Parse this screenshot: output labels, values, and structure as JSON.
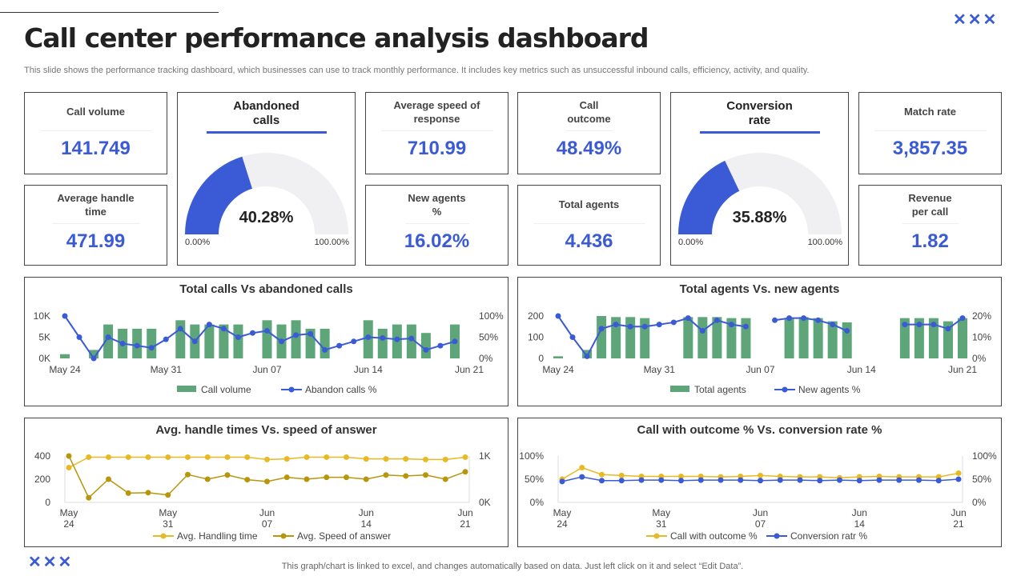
{
  "header": {
    "title": "Call center performance analysis dashboard",
    "subtitle": "This slide shows the performance tracking dashboard, which businesses can use to track monthly performance. It includes key metrics such as unsuccessful inbound calls, efficiency, activity,  and quality.",
    "decor": "✕✕✕"
  },
  "colors": {
    "accent": "#3b5bd6",
    "bar": "#5ea67a",
    "yellow": "#e8b923",
    "olive": "#b8960c"
  },
  "kpis": {
    "call_volume": {
      "label": "Call volume",
      "value": "141.749"
    },
    "avg_speed": {
      "label": "Average speed of response",
      "value": "710.99"
    },
    "call_outcome": {
      "label": "Call outcome",
      "value": "48.49%"
    },
    "match_rate": {
      "label": "Match rate",
      "value": "3,857.35"
    },
    "avg_handle": {
      "label": "Average handle time",
      "value": "471.99"
    },
    "new_agents": {
      "label": "New agents %",
      "value": "16.02%"
    },
    "total_agents": {
      "label": "Total agents",
      "value": "4.436"
    },
    "revenue": {
      "label": "Revenue per call",
      "value": "1.82"
    }
  },
  "gauges": {
    "abandoned": {
      "label": "Abandoned calls",
      "value": "40.28%",
      "fraction": 0.4028,
      "min": "0.00%",
      "max": "100.00%"
    },
    "conversion": {
      "label": "Conversion rate",
      "value": "35.88%",
      "fraction": 0.3588,
      "min": "0.00%",
      "max": "100.00%"
    }
  },
  "chart_data": [
    {
      "type": "bar+line",
      "title": "Total calls Vs abandoned calls",
      "days": 29,
      "xticks": [
        "May 24",
        "May 31",
        "Jun 07",
        "Jun 14",
        "Jun 21"
      ],
      "yticks_left": [
        "0K",
        "5K",
        "10K"
      ],
      "yticks_right": [
        "0%",
        "50%",
        "100%"
      ],
      "ylim_left": [
        0,
        10000
      ],
      "ylim_right": [
        0,
        100
      ],
      "series": [
        {
          "name": "Call volume",
          "kind": "bar",
          "values": [
            1000,
            null,
            2000,
            8000,
            7000,
            7000,
            7000,
            null,
            9000,
            8000,
            8000,
            8000,
            8000,
            null,
            9000,
            8000,
            9000,
            7000,
            7000,
            null,
            null,
            9000,
            7000,
            8000,
            8000,
            6000,
            null,
            8000,
            null
          ]
        },
        {
          "name": "Abandon calls %",
          "kind": "line",
          "values": [
            100,
            50,
            0,
            50,
            35,
            30,
            25,
            45,
            70,
            40,
            80,
            70,
            50,
            60,
            65,
            40,
            55,
            58,
            20,
            30,
            40,
            50,
            48,
            45,
            47,
            20,
            30,
            40,
            null
          ]
        }
      ]
    },
    {
      "type": "bar+line",
      "title": "Total agents Vs. new agents",
      "days": 29,
      "xticks": [
        "May 24",
        "May 31",
        "Jun 07",
        "Jun 14",
        "Jun 21"
      ],
      "yticks_left": [
        "0",
        "100",
        "200"
      ],
      "yticks_right": [
        "0%",
        "10%",
        "20%"
      ],
      "ylim_left": [
        0,
        200
      ],
      "ylim_right": [
        0,
        20
      ],
      "series": [
        {
          "name": "Total agents",
          "kind": "bar",
          "values": [
            10,
            null,
            40,
            200,
            195,
            195,
            190,
            null,
            null,
            195,
            195,
            195,
            190,
            190,
            null,
            null,
            190,
            195,
            190,
            175,
            170,
            null,
            null,
            null,
            190,
            190,
            190,
            175,
            190
          ]
        },
        {
          "name": "New agents %",
          "kind": "line",
          "values": [
            20,
            10,
            1,
            14,
            16,
            15,
            15,
            16,
            17,
            19,
            13,
            18,
            16,
            15,
            null,
            18,
            19,
            19,
            18,
            16,
            13,
            null,
            null,
            null,
            16,
            16,
            16,
            14,
            19
          ]
        }
      ]
    },
    {
      "type": "line",
      "title": "Avg. handle times Vs. speed of answer",
      "xticks": [
        "May 24",
        "May 31",
        "Jun 07",
        "Jun 14",
        "Jun 21"
      ],
      "yticks_left": [
        "0",
        "200",
        "400"
      ],
      "yticks_right": [
        "0K",
        "1K"
      ],
      "ylim_left": [
        0,
        400
      ],
      "ylim_right": [
        0,
        1000
      ],
      "series": [
        {
          "name": "Avg. Handling time",
          "axis": "left",
          "values": [
            300,
            390,
            390,
            390,
            390,
            390,
            390,
            390,
            390,
            390,
            370,
            375,
            390,
            390,
            390,
            375,
            375,
            375,
            370,
            370,
            390
          ]
        },
        {
          "name": "Avg. Speed of answer",
          "axis": "right",
          "values": [
            1000,
            100,
            500,
            200,
            210,
            160,
            600,
            500,
            590,
            490,
            450,
            540,
            500,
            540,
            540,
            500,
            590,
            570,
            590,
            500,
            660
          ]
        }
      ]
    },
    {
      "type": "line",
      "title": "Call with outcome % Vs. conversion rate %",
      "xticks": [
        "May 24",
        "May 31",
        "Jun 07",
        "Jun 14",
        "Jun 21"
      ],
      "yticks_left": [
        "0%",
        "50%",
        "100%"
      ],
      "yticks_right": [
        "0%",
        "50%",
        "100%"
      ],
      "ylim_left": [
        0,
        100
      ],
      "ylim_right": [
        0,
        100
      ],
      "series": [
        {
          "name": "Call with outcome %",
          "axis": "left",
          "values": [
            50,
            75,
            60,
            58,
            56,
            56,
            56,
            56,
            55,
            56,
            58,
            56,
            55,
            55,
            53,
            55,
            56,
            55,
            55,
            55,
            63
          ]
        },
        {
          "name": "Conversion ratr %",
          "axis": "right",
          "values": [
            45,
            55,
            47,
            47,
            48,
            48,
            47,
            48,
            48,
            48,
            47,
            48,
            48,
            47,
            48,
            47,
            48,
            48,
            48,
            47,
            50
          ]
        }
      ]
    }
  ],
  "footer": "This graph/chart is linked to excel,  and changes automatically based on data. Just left click on it and select “Edit Data”."
}
